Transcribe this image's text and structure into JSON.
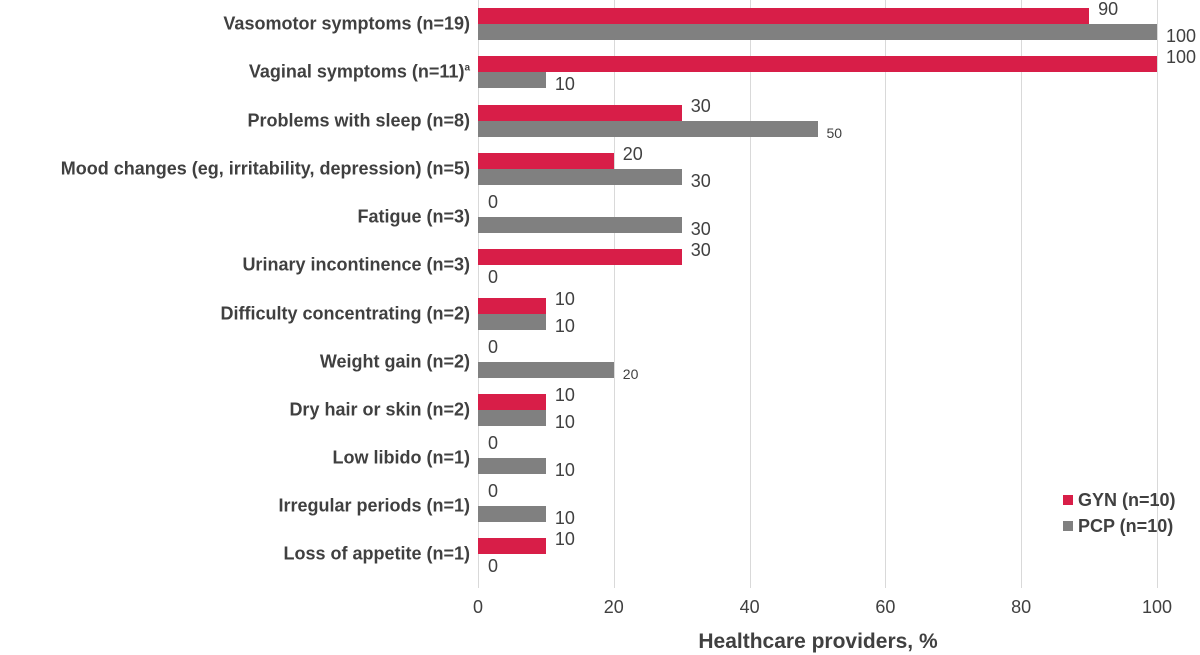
{
  "chart_data": {
    "type": "bar",
    "orientation": "horizontal",
    "title": "",
    "xlabel": "Healthcare providers, %",
    "ylabel": "",
    "xlim": [
      0,
      100
    ],
    "x_ticks": [
      "0",
      "20",
      "40",
      "60",
      "80",
      "100"
    ],
    "grid": true,
    "legend_position": "bottom-right",
    "categories": [
      "Vasomotor symptoms (n=19)",
      "Vaginal symptoms (n=11)",
      "Problems with sleep (n=8)",
      "Mood changes (eg, irritability, depression) (n=5)",
      "Fatigue (n=3)",
      "Urinary incontinence (n=3)",
      "Difficulty concentrating (n=2)",
      "Weight gain (n=2)",
      "Dry hair or skin (n=2)",
      "Low libido (n=1)",
      "Irregular periods (n=1)",
      "Loss of appetite (n=1)"
    ],
    "category_footnotes": [
      "",
      "a",
      "",
      "",
      "",
      "",
      "",
      "",
      "",
      "",
      "",
      ""
    ],
    "series": [
      {
        "name": "GYN (n=10)",
        "color": "#d81e48",
        "values": [
          90,
          100,
          30,
          20,
          0,
          30,
          10,
          0,
          10,
          0,
          0,
          10
        ]
      },
      {
        "name": "PCP (n=10)",
        "color": "#808080",
        "values": [
          100,
          10,
          50,
          30,
          30,
          0,
          10,
          20,
          10,
          10,
          10,
          0
        ]
      }
    ]
  },
  "labels": {
    "gyn": [
      "90",
      "100",
      "30",
      "20",
      "0",
      "30",
      "10",
      "0",
      "10",
      "0",
      "0",
      "10"
    ],
    "pcp": [
      "100",
      "10",
      "50",
      "30",
      "30",
      "0",
      "10",
      "20",
      "10",
      "10",
      "10",
      "0"
    ]
  },
  "legend": {
    "gyn": "GYN (n=10)",
    "pcp": "PCP (n=10)"
  }
}
